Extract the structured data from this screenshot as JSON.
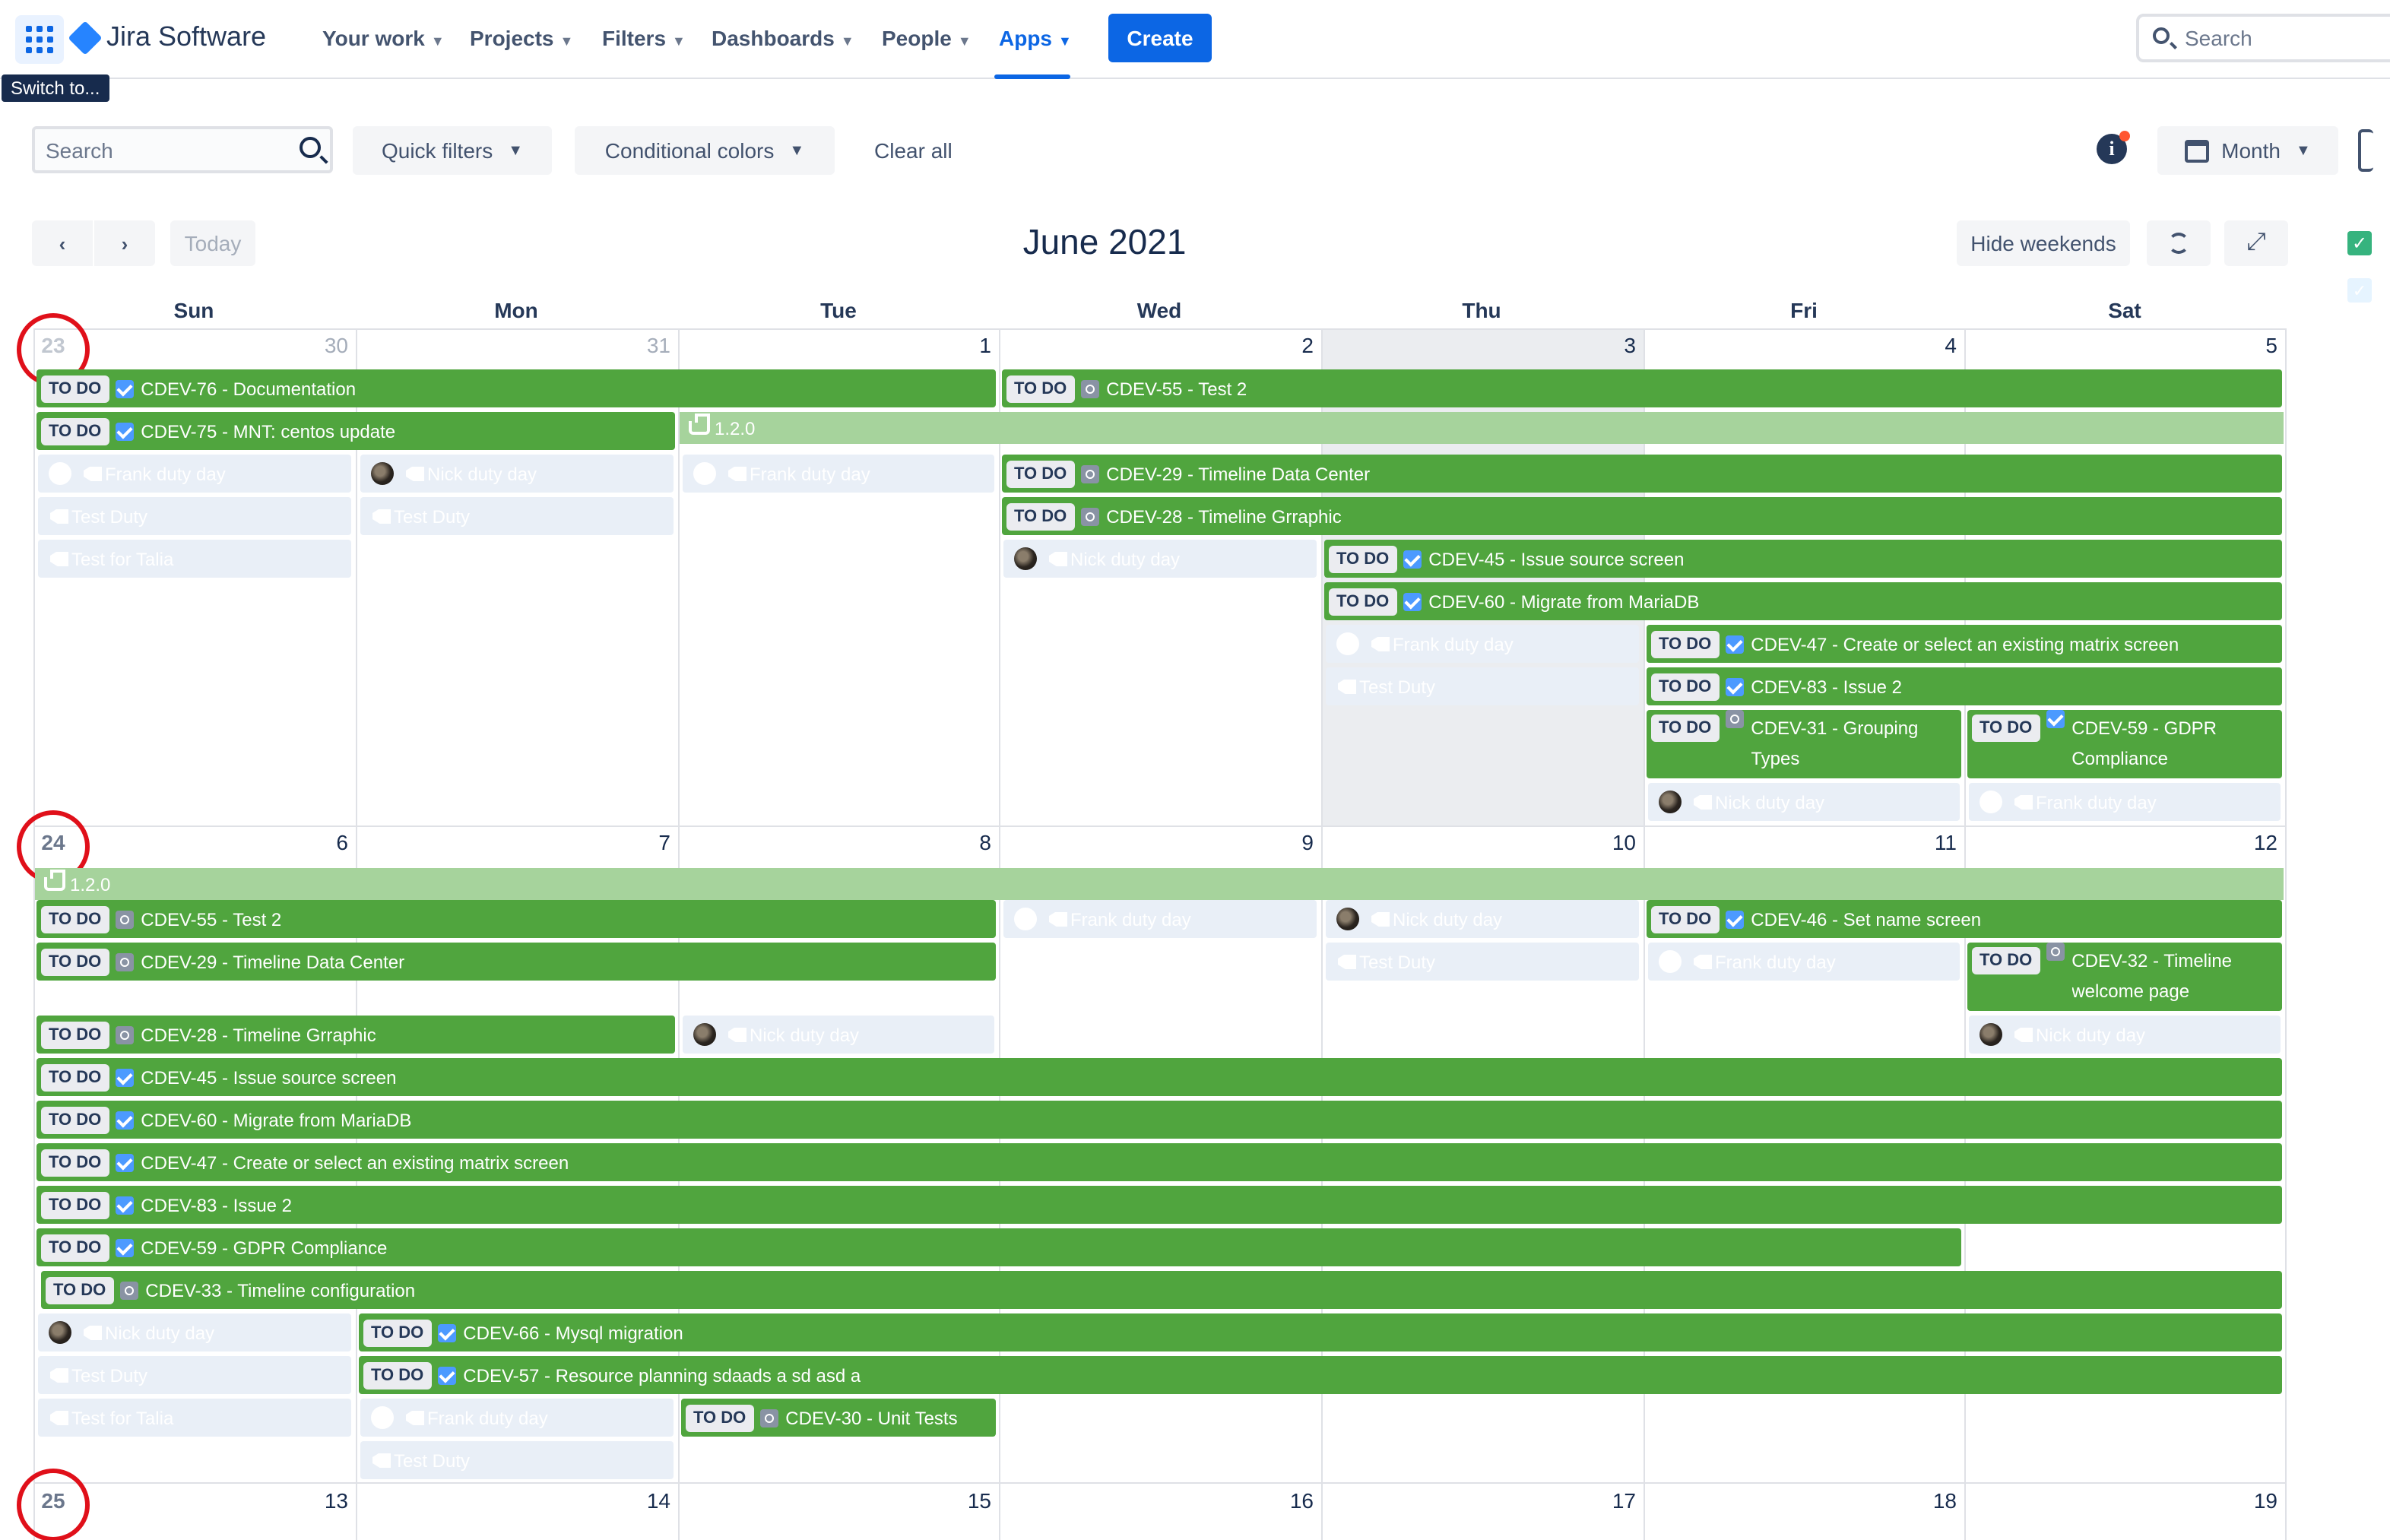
{
  "topnav": {
    "logo_text": "Jira Software",
    "items": [
      {
        "label": "Your work"
      },
      {
        "label": "Projects"
      },
      {
        "label": "Filters"
      },
      {
        "label": "Dashboards"
      },
      {
        "label": "People"
      },
      {
        "label": "Apps"
      }
    ],
    "active_item": "Apps",
    "create_label": "Create",
    "search_placeholder": "Search",
    "tooltip": "Switch to..."
  },
  "toolbar": {
    "search_placeholder": "Search",
    "quick_filters": "Quick filters",
    "conditional_colors": "Conditional colors",
    "clear_all": "Clear all",
    "view_select": "Month",
    "info_icon_text": "i"
  },
  "calendar": {
    "today_label": "Today",
    "prev_icon": "‹",
    "next_icon": "›",
    "title": "June 2021",
    "hide_weekends": "Hide weekends",
    "weekdays": [
      "Sun",
      "Mon",
      "Tue",
      "Wed",
      "Thu",
      "Fri",
      "Sat"
    ],
    "weeks": [
      {
        "week_no": "23",
        "days": [
          "30",
          "31",
          "1",
          "2",
          "3",
          "4",
          "5"
        ]
      },
      {
        "week_no": "24",
        "days": [
          "6",
          "7",
          "8",
          "9",
          "10",
          "11",
          "12"
        ]
      },
      {
        "week_no": "25",
        "days": [
          "13",
          "14",
          "15",
          "16",
          "17",
          "18",
          "19"
        ]
      }
    ],
    "status_label": "TO DO",
    "version_label": "1.2.0",
    "week1_events": [
      {
        "key": "CDEV-76",
        "title": "CDEV-76 - Documentation",
        "type": "task"
      },
      {
        "key": "CDEV-55",
        "title": "CDEV-55 - Test 2",
        "type": "subtask"
      },
      {
        "key": "CDEV-75",
        "title": "CDEV-75 - MNT: centos update",
        "type": "task"
      },
      {
        "key": "CDEV-29",
        "title": "CDEV-29 - Timeline Data Center",
        "type": "subtask"
      },
      {
        "key": "CDEV-28",
        "title": "CDEV-28 - Timeline Grraphic",
        "type": "subtask"
      },
      {
        "key": "CDEV-45",
        "title": "CDEV-45 - Issue source screen",
        "type": "task"
      },
      {
        "key": "CDEV-60",
        "title": "CDEV-60 - Migrate from MariaDB",
        "type": "task"
      },
      {
        "key": "CDEV-47",
        "title": "CDEV-47 - Create or select an existing matrix screen",
        "type": "task"
      },
      {
        "key": "CDEV-83",
        "title": "CDEV-83 - Issue 2",
        "type": "task"
      },
      {
        "key": "CDEV-31",
        "title": "CDEV-31 - Grouping Types",
        "type": "subtask"
      },
      {
        "key": "CDEV-59",
        "title": "CDEV-59 - GDPR Compliance",
        "type": "task"
      }
    ],
    "week2_events": [
      {
        "key": "CDEV-55",
        "title": "CDEV-55 - Test 2",
        "type": "subtask"
      },
      {
        "key": "CDEV-46",
        "title": "CDEV-46 - Set name screen",
        "type": "task"
      },
      {
        "key": "CDEV-29",
        "title": "CDEV-29 - Timeline Data Center",
        "type": "subtask"
      },
      {
        "key": "CDEV-32",
        "title": "CDEV-32 - Timeline welcome page",
        "type": "subtask"
      },
      {
        "key": "CDEV-28",
        "title": "CDEV-28 - Timeline Grraphic",
        "type": "subtask"
      },
      {
        "key": "CDEV-45",
        "title": "CDEV-45 - Issue source screen",
        "type": "task"
      },
      {
        "key": "CDEV-60",
        "title": "CDEV-60 - Migrate from MariaDB",
        "type": "task"
      },
      {
        "key": "CDEV-47",
        "title": "CDEV-47 - Create or select an existing matrix screen",
        "type": "task"
      },
      {
        "key": "CDEV-83",
        "title": "CDEV-83 - Issue 2",
        "type": "task"
      },
      {
        "key": "CDEV-59",
        "title": "CDEV-59 - GDPR Compliance",
        "type": "task"
      },
      {
        "key": "CDEV-33",
        "title": "CDEV-33 - Timeline configuration",
        "type": "subtask"
      },
      {
        "key": "CDEV-66",
        "title": "CDEV-66 - Mysql migration",
        "type": "task"
      },
      {
        "key": "CDEV-57",
        "title": "CDEV-57 - Resource planning sdaads a sd asd a",
        "type": "task"
      },
      {
        "key": "CDEV-30",
        "title": "CDEV-30 - Unit Tests",
        "type": "subtask"
      }
    ],
    "duties": {
      "frank": "Frank duty day",
      "nick": "Nick duty day",
      "test_duty": "Test Duty",
      "test_talia": "Test for Talia"
    },
    "colors": {
      "event_green": "#50a53e",
      "version_green": "#a6d39c",
      "duty_bg": "#e9eff7",
      "brand_blue": "#0c66e4",
      "annotation_red": "#e0101a"
    }
  }
}
